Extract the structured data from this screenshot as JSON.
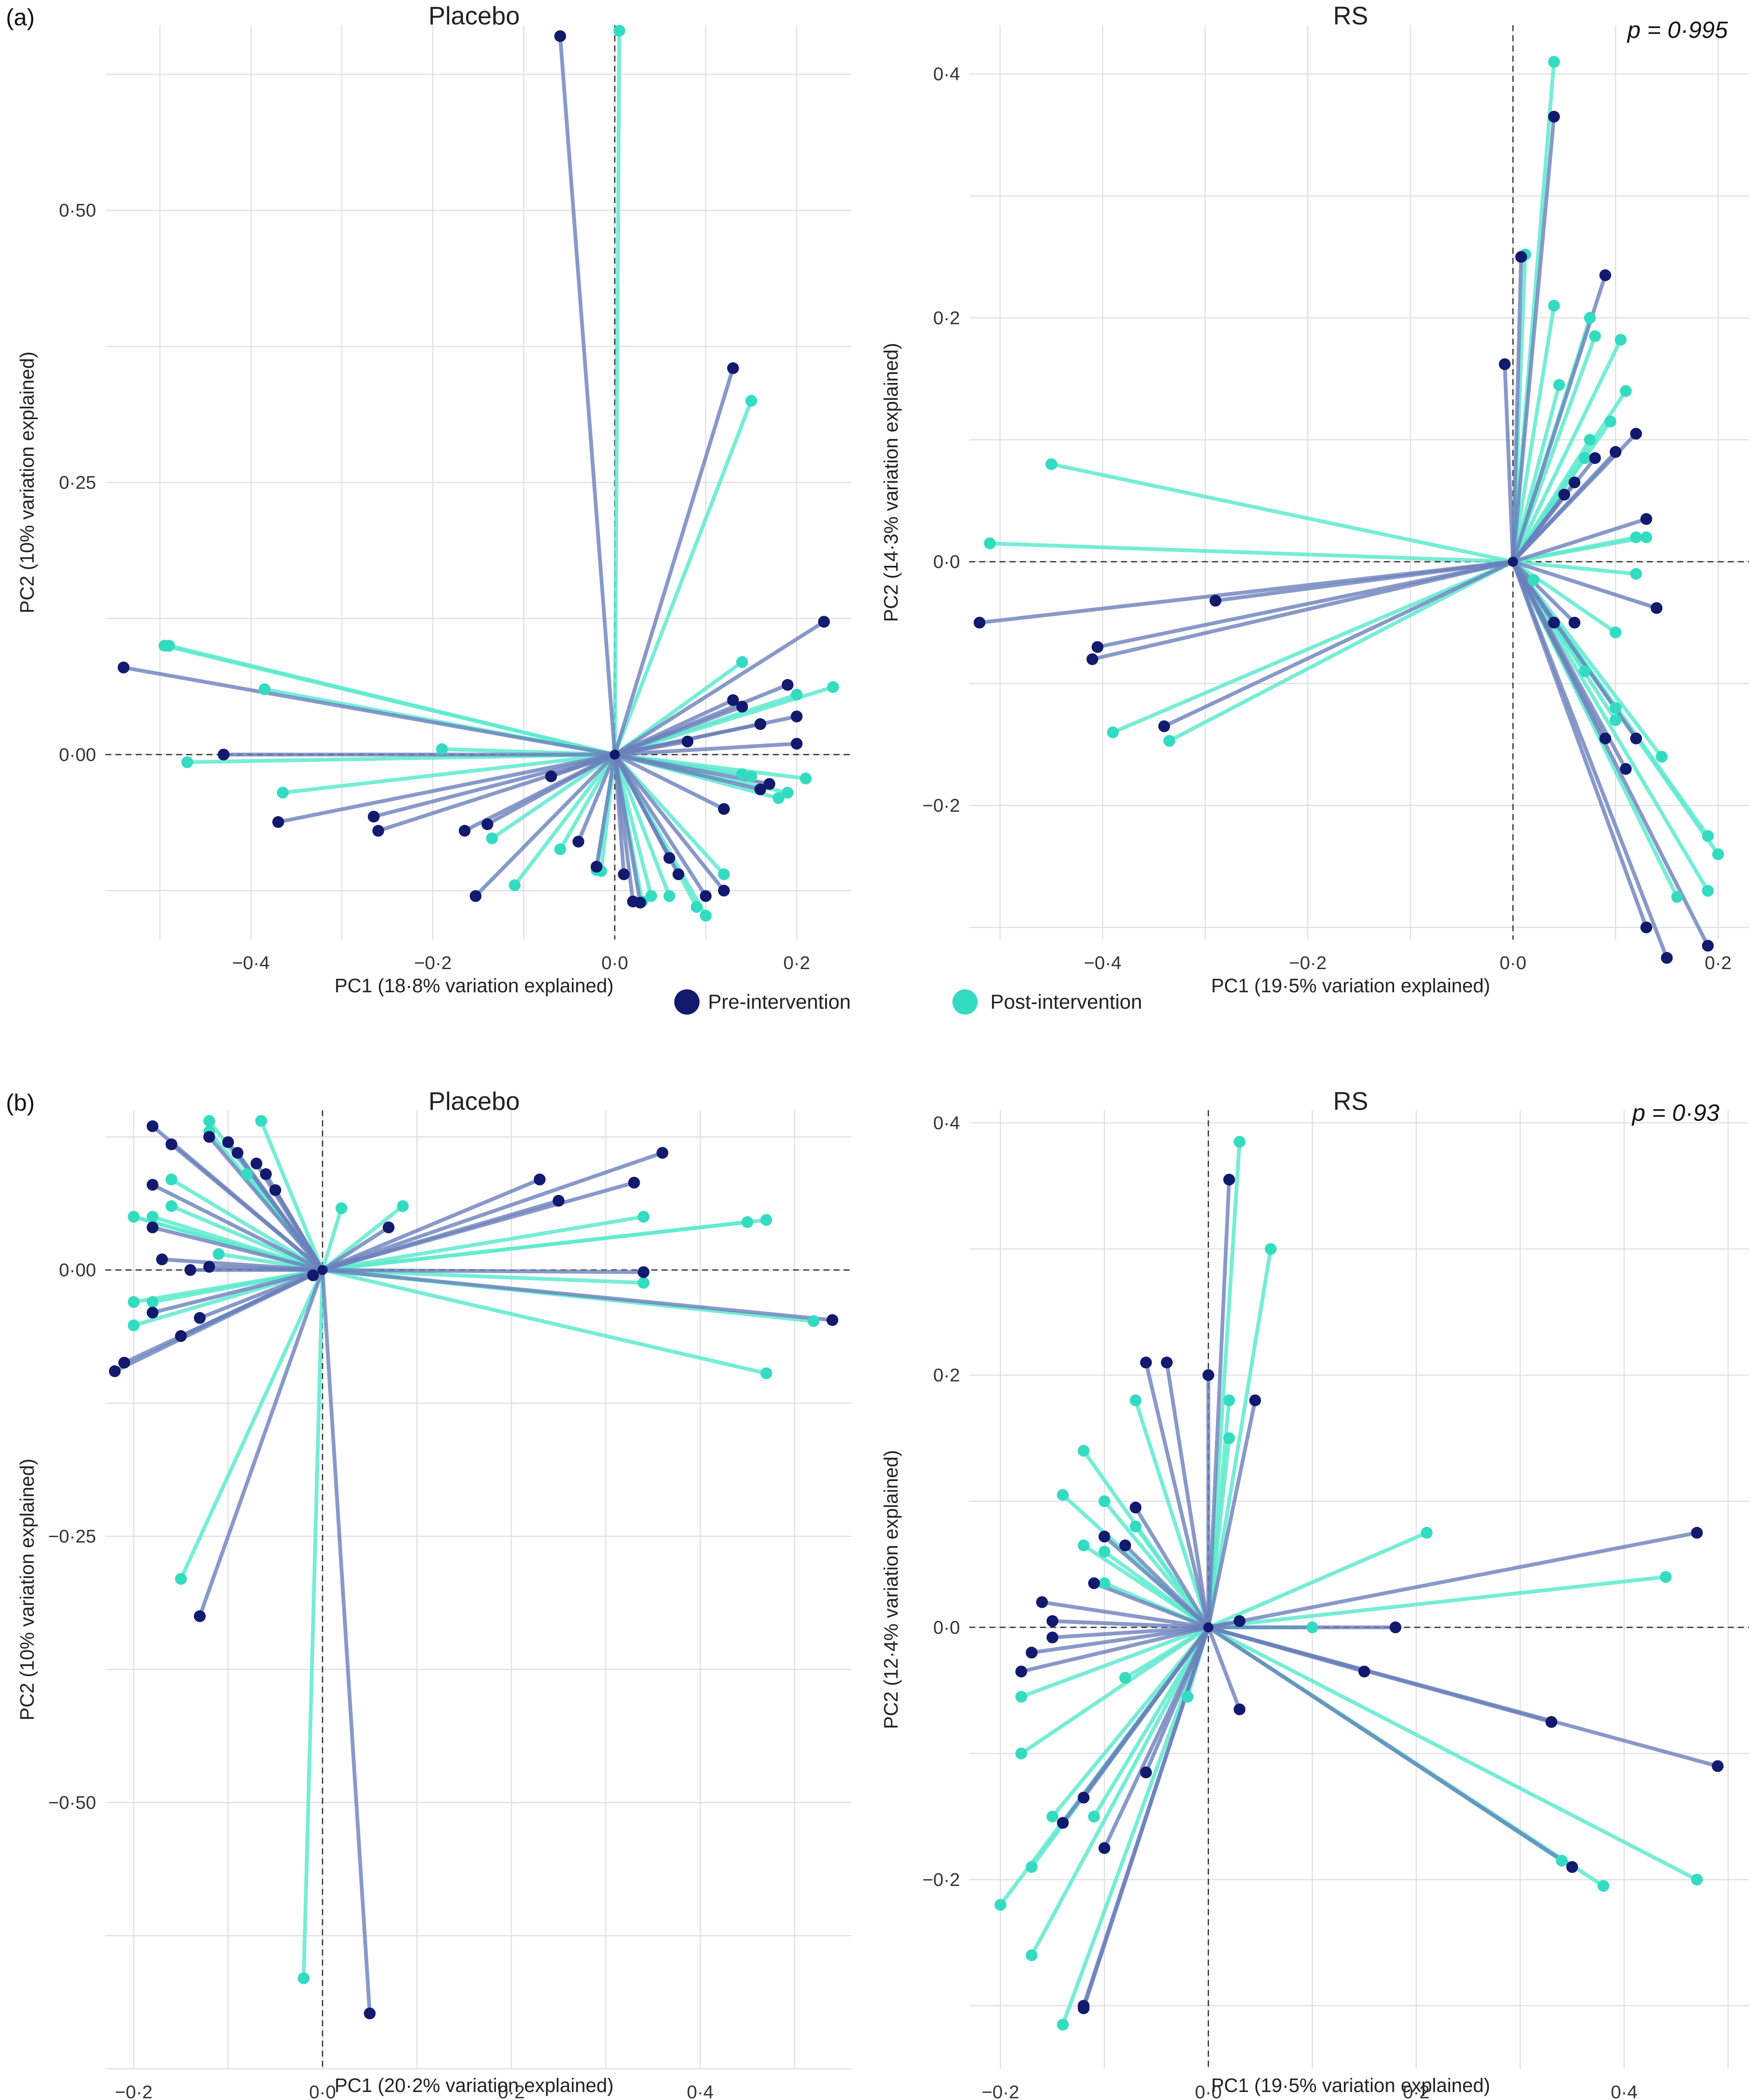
{
  "colors": {
    "pre": "#121a6e",
    "post": "#33dcc0",
    "pre_line": "#6a7fbb",
    "post_line": "#5eeacf"
  },
  "legend": {
    "pre": "Pre-intervention",
    "post": "Post-intervention"
  },
  "panel_labels": {
    "a": "(a)",
    "b": "(b)"
  },
  "chart_data": [
    {
      "id": "a-placebo",
      "type": "scatter",
      "title": "Placebo",
      "xlabel": "PC1 (18·8% variation explained)",
      "ylabel": "PC2 (10% variation explained)",
      "pvalue": "",
      "xlim": [
        -0.56,
        0.26
      ],
      "ylim": [
        -0.17,
        0.67
      ],
      "xticks": [
        -0.4,
        -0.2,
        0.0,
        0.2
      ],
      "xtick_labels": [
        "−0·4",
        "−0·2",
        "0·0",
        "0·2"
      ],
      "yticks": [
        0.0,
        0.25,
        0.5
      ],
      "ytick_labels": [
        "0·00",
        "0·25",
        "0·50"
      ],
      "center": [
        0.0,
        0.0
      ],
      "pre": [
        [
          -0.06,
          0.66
        ],
        [
          0.13,
          0.355
        ],
        [
          -0.54,
          0.08
        ],
        [
          -0.43,
          0.0
        ],
        [
          -0.37,
          -0.062
        ],
        [
          -0.26,
          -0.07
        ],
        [
          -0.265,
          -0.057
        ],
        [
          -0.165,
          -0.07
        ],
        [
          -0.14,
          -0.064
        ],
        [
          -0.153,
          -0.13
        ],
        [
          -0.07,
          -0.02
        ],
        [
          -0.04,
          -0.08
        ],
        [
          -0.02,
          -0.103
        ],
        [
          0.01,
          -0.11
        ],
        [
          0.02,
          -0.135
        ],
        [
          0.028,
          -0.136
        ],
        [
          0.06,
          -0.095
        ],
        [
          0.07,
          -0.11
        ],
        [
          0.1,
          -0.13
        ],
        [
          0.12,
          -0.05
        ],
        [
          0.12,
          -0.125
        ],
        [
          0.23,
          0.122
        ],
        [
          0.19,
          0.064
        ],
        [
          0.2,
          0.035
        ],
        [
          0.16,
          0.028
        ],
        [
          0.13,
          0.05
        ],
        [
          0.14,
          0.044
        ],
        [
          0.08,
          0.012
        ],
        [
          0.2,
          0.01
        ],
        [
          0.17,
          -0.027
        ],
        [
          0.16,
          -0.032
        ]
      ],
      "post": [
        [
          0.005,
          0.665
        ],
        [
          0.15,
          0.325
        ],
        [
          -0.49,
          0.1
        ],
        [
          -0.495,
          0.1
        ],
        [
          -0.47,
          -0.007
        ],
        [
          -0.385,
          0.06
        ],
        [
          -0.365,
          -0.035
        ],
        [
          -0.19,
          0.005
        ],
        [
          -0.135,
          -0.077
        ],
        [
          -0.11,
          -0.12
        ],
        [
          -0.06,
          -0.087
        ],
        [
          -0.02,
          -0.106
        ],
        [
          0.04,
          -0.13
        ],
        [
          0.06,
          -0.13
        ],
        [
          0.09,
          -0.14
        ],
        [
          0.1,
          -0.148
        ],
        [
          0.12,
          -0.11
        ],
        [
          0.14,
          0.085
        ],
        [
          0.2,
          0.055
        ],
        [
          0.24,
          0.062
        ],
        [
          0.19,
          -0.035
        ],
        [
          0.21,
          -0.022
        ],
        [
          0.18,
          -0.04
        ],
        [
          0.14,
          -0.018
        ],
        [
          0.15,
          -0.02
        ],
        [
          0.03,
          -0.135
        ],
        [
          -0.015,
          -0.107
        ]
      ]
    },
    {
      "id": "a-rs",
      "type": "scatter",
      "title": "RS",
      "xlabel": "PC1 (19·5% variation explained)",
      "ylabel": "PC2 (14·3% variation explained)",
      "pvalue": "p = 0·995",
      "xlim": [
        -0.53,
        0.23
      ],
      "ylim": [
        -0.31,
        0.44
      ],
      "xticks": [
        -0.4,
        -0.2,
        0.0,
        0.2
      ],
      "xtick_labels": [
        "−0·4",
        "−0·2",
        "0·0",
        "0·2"
      ],
      "yticks": [
        -0.2,
        0.0,
        0.2,
        0.4
      ],
      "ytick_labels": [
        "−0·2",
        "0·0",
        "0·2",
        "0·4"
      ],
      "center": [
        0.0,
        0.0
      ],
      "pre": [
        [
          0.04,
          0.365
        ],
        [
          0.008,
          0.25
        ],
        [
          -0.008,
          0.162
        ],
        [
          0.09,
          0.235
        ],
        [
          0.12,
          0.105
        ],
        [
          0.1,
          0.09
        ],
        [
          0.08,
          0.085
        ],
        [
          0.06,
          0.065
        ],
        [
          0.05,
          0.055
        ],
        [
          0.13,
          0.035
        ],
        [
          0.14,
          -0.038
        ],
        [
          -0.52,
          -0.05
        ],
        [
          -0.29,
          -0.032
        ],
        [
          -0.405,
          -0.07
        ],
        [
          -0.41,
          -0.08
        ],
        [
          -0.34,
          -0.135
        ],
        [
          0.12,
          -0.145
        ],
        [
          0.11,
          -0.17
        ],
        [
          0.09,
          -0.145
        ],
        [
          0.13,
          -0.3
        ],
        [
          0.15,
          -0.325
        ],
        [
          0.19,
          -0.315
        ],
        [
          0.06,
          -0.05
        ],
        [
          0.04,
          -0.05
        ]
      ],
      "post": [
        [
          0.04,
          0.41
        ],
        [
          0.012,
          0.252
        ],
        [
          0.04,
          0.21
        ],
        [
          0.075,
          0.2
        ],
        [
          0.105,
          0.182
        ],
        [
          0.08,
          0.185
        ],
        [
          0.045,
          0.145
        ],
        [
          0.095,
          0.115
        ],
        [
          0.11,
          0.14
        ],
        [
          0.07,
          0.085
        ],
        [
          0.075,
          0.1
        ],
        [
          0.12,
          0.02
        ],
        [
          0.13,
          0.02
        ],
        [
          0.12,
          -0.01
        ],
        [
          -0.45,
          0.08
        ],
        [
          -0.51,
          0.015
        ],
        [
          -0.39,
          -0.14
        ],
        [
          -0.335,
          -0.147
        ],
        [
          0.1,
          -0.058
        ],
        [
          0.02,
          -0.015
        ],
        [
          0.1,
          -0.13
        ],
        [
          0.145,
          -0.16
        ],
        [
          0.19,
          -0.225
        ],
        [
          0.2,
          -0.24
        ],
        [
          0.19,
          -0.27
        ],
        [
          0.16,
          -0.275
        ],
        [
          0.07,
          -0.09
        ],
        [
          0.1,
          -0.12
        ]
      ]
    },
    {
      "id": "b-placebo",
      "type": "scatter",
      "title": "Placebo",
      "xlabel": "PC1 (20·2% variation explained)",
      "ylabel": "PC2 (10% variation explained)",
      "pvalue": "",
      "xlim": [
        -0.23,
        0.56
      ],
      "ylim": [
        -0.75,
        0.15
      ],
      "xticks": [
        -0.2,
        0.0,
        0.2,
        0.4
      ],
      "xtick_labels": [
        "−0·2",
        "0·0",
        "0·2",
        "0·4"
      ],
      "yticks": [
        -0.5,
        -0.25,
        0.0
      ],
      "ytick_labels": [
        "−0·50",
        "−0·25",
        "0·00"
      ],
      "center": [
        0.0,
        0.0
      ],
      "pre": [
        [
          -0.18,
          0.135
        ],
        [
          -0.16,
          0.118
        ],
        [
          -0.12,
          0.125
        ],
        [
          -0.1,
          0.12
        ],
        [
          -0.09,
          0.11
        ],
        [
          -0.06,
          0.09
        ],
        [
          -0.07,
          0.1
        ],
        [
          -0.05,
          0.075
        ],
        [
          -0.18,
          0.08
        ],
        [
          -0.18,
          0.04
        ],
        [
          -0.17,
          0.01
        ],
        [
          -0.14,
          0.0
        ],
        [
          -0.12,
          0.003
        ],
        [
          -0.13,
          -0.045
        ],
        [
          -0.18,
          -0.04
        ],
        [
          -0.15,
          -0.062
        ],
        [
          -0.22,
          -0.095
        ],
        [
          -0.21,
          -0.087
        ],
        [
          0.36,
          0.11
        ],
        [
          0.33,
          0.082
        ],
        [
          0.23,
          0.085
        ],
        [
          0.25,
          0.065
        ],
        [
          0.07,
          0.04
        ],
        [
          0.34,
          -0.002
        ],
        [
          0.54,
          -0.047
        ],
        [
          0.05,
          -0.698
        ],
        [
          -0.13,
          -0.325
        ],
        [
          -0.01,
          -0.005
        ]
      ],
      "post": [
        [
          -0.12,
          0.14
        ],
        [
          -0.12,
          0.13
        ],
        [
          -0.065,
          0.14
        ],
        [
          -0.08,
          0.09
        ],
        [
          -0.16,
          0.085
        ],
        [
          -0.16,
          0.06
        ],
        [
          -0.2,
          0.05
        ],
        [
          -0.18,
          0.05
        ],
        [
          -0.2,
          0.05
        ],
        [
          -0.11,
          0.015
        ],
        [
          -0.2,
          -0.03
        ],
        [
          -0.18,
          -0.03
        ],
        [
          -0.2,
          -0.052
        ],
        [
          0.02,
          0.058
        ],
        [
          0.085,
          0.06
        ],
        [
          0.34,
          0.05
        ],
        [
          0.45,
          0.045
        ],
        [
          0.47,
          0.047
        ],
        [
          0.34,
          -0.012
        ],
        [
          0.52,
          -0.048
        ],
        [
          0.47,
          -0.097
        ],
        [
          -0.15,
          -0.29
        ],
        [
          -0.02,
          -0.665
        ]
      ]
    },
    {
      "id": "b-rs",
      "type": "scatter",
      "title": "RS",
      "xlabel": "PC1 (19·5% variation explained)",
      "ylabel": "PC2 (12·4% variation explained)",
      "pvalue": "p = 0·93",
      "xlim": [
        -0.23,
        0.52
      ],
      "ylim": [
        -0.35,
        0.41
      ],
      "xticks": [
        -0.2,
        0.0,
        0.2,
        0.4
      ],
      "xtick_labels": [
        "−0·2",
        "0·0",
        "0·2",
        "0·4"
      ],
      "yticks": [
        -0.2,
        0.0,
        0.2,
        0.4
      ],
      "ytick_labels": [
        "−0·2",
        "0·0",
        "0·2",
        "0·4"
      ],
      "center": [
        0.0,
        0.0
      ],
      "pre": [
        [
          0.02,
          0.355
        ],
        [
          -0.06,
          0.21
        ],
        [
          -0.04,
          0.21
        ],
        [
          -0.0,
          0.2
        ],
        [
          0.045,
          0.18
        ],
        [
          -0.07,
          0.095
        ],
        [
          -0.1,
          0.072
        ],
        [
          -0.08,
          0.065
        ],
        [
          -0.11,
          0.035
        ],
        [
          -0.16,
          0.02
        ],
        [
          -0.15,
          0.005
        ],
        [
          -0.15,
          -0.008
        ],
        [
          -0.17,
          -0.02
        ],
        [
          -0.18,
          -0.035
        ],
        [
          0.03,
          0.005
        ],
        [
          0.18,
          0.0
        ],
        [
          0.47,
          0.075
        ],
        [
          0.49,
          -0.11
        ],
        [
          0.33,
          -0.075
        ],
        [
          0.15,
          -0.035
        ],
        [
          0.35,
          -0.19
        ],
        [
          0.03,
          -0.065
        ],
        [
          -0.12,
          -0.135
        ],
        [
          -0.14,
          -0.155
        ],
        [
          -0.1,
          -0.175
        ],
        [
          -0.12,
          -0.3
        ],
        [
          -0.12,
          -0.302
        ],
        [
          -0.06,
          -0.115
        ]
      ],
      "post": [
        [
          0.03,
          0.385
        ],
        [
          0.06,
          0.3
        ],
        [
          0.02,
          0.18
        ],
        [
          0.02,
          0.15
        ],
        [
          -0.07,
          0.18
        ],
        [
          -0.12,
          0.14
        ],
        [
          -0.14,
          0.105
        ],
        [
          -0.07,
          0.08
        ],
        [
          -0.1,
          0.1
        ],
        [
          -0.1,
          0.06
        ],
        [
          -0.12,
          0.065
        ],
        [
          -0.1,
          0.035
        ],
        [
          0.21,
          0.075
        ],
        [
          0.1,
          0.0
        ],
        [
          0.44,
          0.04
        ],
        [
          -0.18,
          -0.055
        ],
        [
          -0.18,
          -0.1
        ],
        [
          -0.08,
          -0.04
        ],
        [
          -0.15,
          -0.15
        ],
        [
          -0.11,
          -0.15
        ],
        [
          -0.17,
          -0.19
        ],
        [
          -0.2,
          -0.22
        ],
        [
          -0.17,
          -0.26
        ],
        [
          -0.14,
          -0.315
        ],
        [
          0.34,
          -0.185
        ],
        [
          0.38,
          -0.205
        ],
        [
          0.47,
          -0.2
        ],
        [
          -0.02,
          -0.055
        ]
      ]
    }
  ]
}
